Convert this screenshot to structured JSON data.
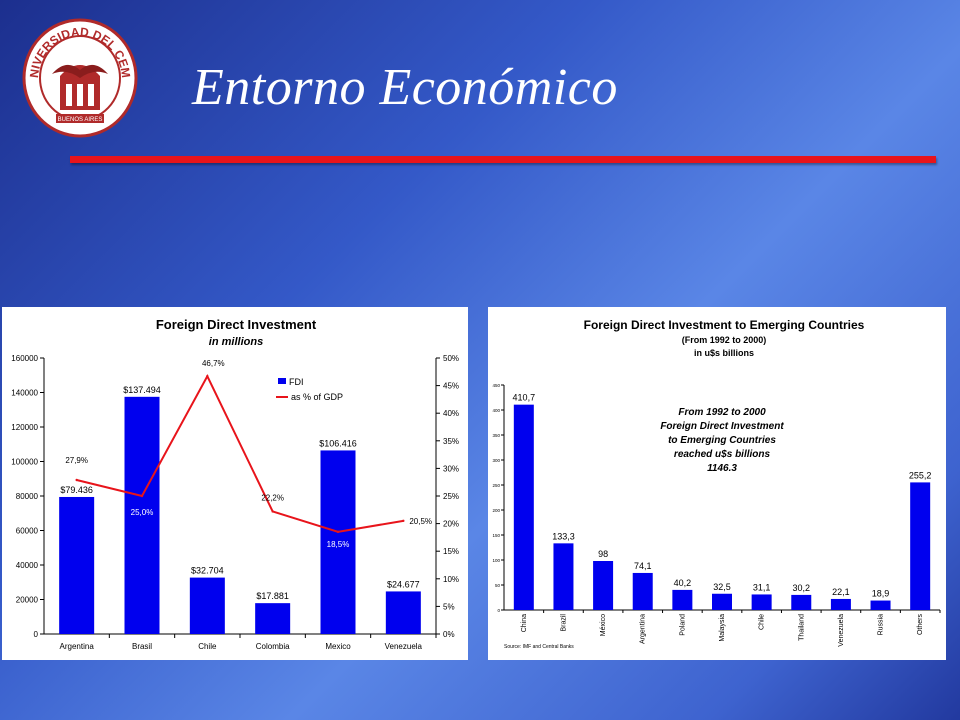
{
  "slide": {
    "title": "Entorno Económico",
    "colors": {
      "rule": "#e8141b",
      "logo_red": "#b02a2a"
    }
  },
  "logo": {
    "icon": "university-seal-icon",
    "ring_text": "UNIVERSIDAD DEL CEMA",
    "bottom_text": "BUENOS AIRES"
  },
  "chart_data": [
    {
      "type": "bar",
      "title": "Foreign Direct Investment",
      "subtitle": "in millions",
      "categories": [
        "Argentina",
        "Brasil",
        "Chile",
        "Colombia",
        "Mexico",
        "Venezuela"
      ],
      "series": [
        {
          "name": "FDI",
          "type": "bar",
          "axis": "left",
          "color": "#0000ee",
          "values": [
            79436,
            137494,
            32704,
            17881,
            106416,
            24677
          ],
          "labels": [
            "$79.436",
            "$137.494",
            "$32.704",
            "$17.881",
            "$106.416",
            "$24.677"
          ]
        },
        {
          "name": "as % of GDP",
          "type": "line",
          "axis": "right",
          "color": "#e8141b",
          "values": [
            27.9,
            25.0,
            46.7,
            22.2,
            18.5,
            20.5
          ],
          "labels": [
            "27,9%",
            "25,0%",
            "46,7%",
            "22,2%",
            "18,5%",
            "20,5%"
          ]
        }
      ],
      "ylim": [
        0,
        160000
      ],
      "yticks": [
        "0",
        "20000",
        "40000",
        "60000",
        "80000",
        "100000",
        "120000",
        "140000",
        "160000"
      ],
      "y2lim": [
        0,
        50
      ],
      "y2ticks": [
        "0%",
        "5%",
        "10%",
        "15%",
        "20%",
        "25%",
        "30%",
        "35%",
        "40%",
        "45%",
        "50%"
      ],
      "legend": "top-right",
      "grid": false
    },
    {
      "type": "bar",
      "title": "Foreign Direct Investment to Emerging Countries",
      "subtitle": "(From 1992 to 2000)",
      "subtitle2": "in u$s billions",
      "categories": [
        "China",
        "Brazil",
        "México",
        "Argentina",
        "Poland",
        "Malaysia",
        "Chile",
        "Thailand",
        "Venezuela",
        "Russia",
        "Others"
      ],
      "values": [
        410.7,
        133.3,
        98,
        74.1,
        40.2,
        32.5,
        31.1,
        30.2,
        22.1,
        18.9,
        255.2
      ],
      "labels": [
        "410,7",
        "133,3",
        "98",
        "74,1",
        "40,2",
        "32,5",
        "31,1",
        "30,2",
        "22,1",
        "18,9",
        "255,2"
      ],
      "color": "#0000ee",
      "ylim": [
        0,
        450
      ],
      "yticks": [
        "0",
        "50",
        "100",
        "150",
        "200",
        "250",
        "300",
        "350",
        "400",
        "450"
      ],
      "annotation": [
        "From 1992 to 2000",
        "Foreign Direct Investment",
        "to Emerging Countries",
        "reached u$s billions",
        "1146.3"
      ],
      "source": "Source: IMF and Central Banks",
      "grid": false
    }
  ]
}
